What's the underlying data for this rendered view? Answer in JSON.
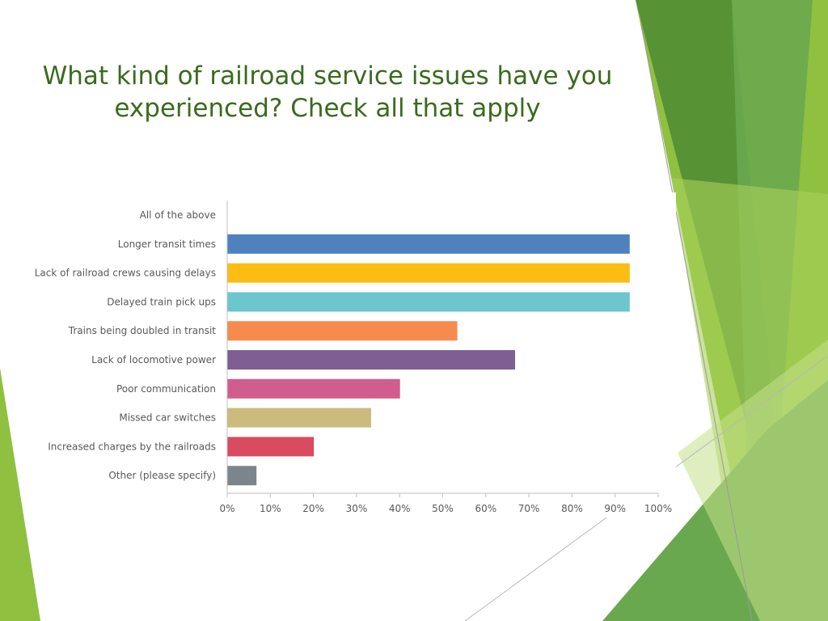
{
  "slide": {
    "title": "What kind of railroad service issues have you experienced? Check all that apply",
    "title_color": "#3a6b1e",
    "accent_colors": [
      "#6aa84f",
      "#8fc03f",
      "#4e8a32",
      "#c4e08a"
    ]
  },
  "chart_data": {
    "type": "bar",
    "orientation": "horizontal",
    "title": "",
    "xlabel": "",
    "ylabel": "",
    "xlim": [
      0,
      100
    ],
    "x_unit": "%",
    "x_ticks": [
      "0%",
      "10%",
      "20%",
      "30%",
      "40%",
      "50%",
      "60%",
      "70%",
      "80%",
      "90%",
      "100%"
    ],
    "grid": false,
    "legend": "none",
    "categories": [
      "All of the above",
      "Longer transit times",
      "Lack of railroad crews causing delays",
      "Delayed train pick ups",
      "Trains being doubled in transit",
      "Lack of locomotive power",
      "Poor communication",
      "Missed car switches",
      "Increased charges by the railroads",
      "Other (please specify)"
    ],
    "values": [
      0,
      93.3,
      93.3,
      93.3,
      53.3,
      66.7,
      40.0,
      33.3,
      20.0,
      6.7
    ],
    "colors": [
      "#4f81bd",
      "#4f81bd",
      "#fbbd12",
      "#6cc6ce",
      "#f78b4d",
      "#7f5f93",
      "#d05d8e",
      "#cbbb7c",
      "#d94b5e",
      "#7b868c"
    ]
  }
}
